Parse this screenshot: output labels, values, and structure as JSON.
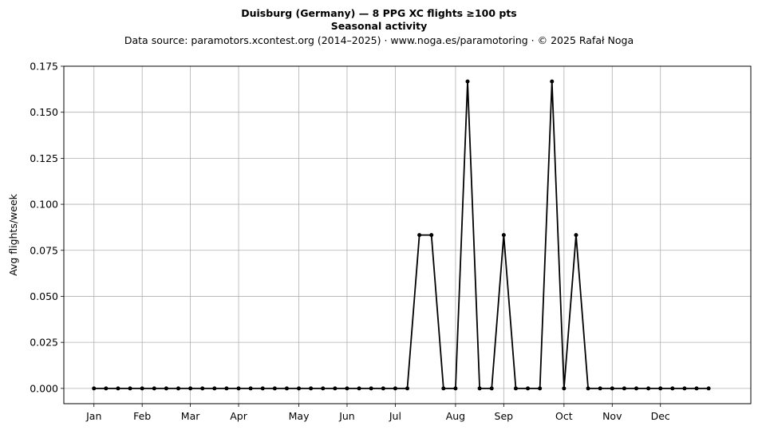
{
  "header": {
    "title": "Duisburg (Germany)  —  8 PPG XC flights ≥100 pts",
    "subtitle": "Seasonal activity",
    "source": "Data source: paramotors.xcontest.org (2014–2025)  ·  www.noga.es/paramotoring  ·  © 2025 Rafał Noga"
  },
  "chart_data": {
    "type": "line",
    "title": "Duisburg (Germany)  —  8 PPG XC flights ≥100 pts",
    "subtitle": "Seasonal activity",
    "xlabel": "",
    "ylabel": "Avg flights/week",
    "x_unit": "week of year",
    "x": [
      1,
      2,
      3,
      4,
      5,
      6,
      7,
      8,
      9,
      10,
      11,
      12,
      13,
      14,
      15,
      16,
      17,
      18,
      19,
      20,
      21,
      22,
      23,
      24,
      25,
      26,
      27,
      28,
      29,
      30,
      31,
      32,
      33,
      34,
      35,
      36,
      37,
      38,
      39,
      40,
      41,
      42,
      43,
      44,
      45,
      46,
      47,
      48,
      49,
      50,
      51,
      52
    ],
    "values": [
      0,
      0,
      0,
      0,
      0,
      0,
      0,
      0,
      0,
      0,
      0,
      0,
      0,
      0,
      0,
      0,
      0,
      0,
      0,
      0,
      0,
      0,
      0,
      0,
      0,
      0,
      0,
      0.0833,
      0.0833,
      0,
      0,
      0.1667,
      0,
      0,
      0.0833,
      0,
      0,
      0,
      0.1667,
      0,
      0.0833,
      0,
      0,
      0,
      0,
      0,
      0,
      0,
      0,
      0,
      0,
      0
    ],
    "xlim": [
      -1.5,
      55.5
    ],
    "ylim": [
      -0.0083,
      0.175
    ],
    "yticks": [
      0.0,
      0.025,
      0.05,
      0.075,
      0.1,
      0.125,
      0.15,
      0.175
    ],
    "ytick_labels": [
      "0.000",
      "0.025",
      "0.050",
      "0.075",
      "0.100",
      "0.125",
      "0.150",
      "0.175"
    ],
    "xticks": [
      1,
      5,
      9,
      13,
      18,
      22,
      26,
      31,
      35,
      40,
      44,
      48
    ],
    "xtick_labels": [
      "Jan",
      "Feb",
      "Mar",
      "Apr",
      "May",
      "Jun",
      "Jul",
      "Aug",
      "Sep",
      "Oct",
      "Nov",
      "Dec"
    ],
    "grid": true,
    "line_color": "#000000",
    "marker": "dot"
  }
}
